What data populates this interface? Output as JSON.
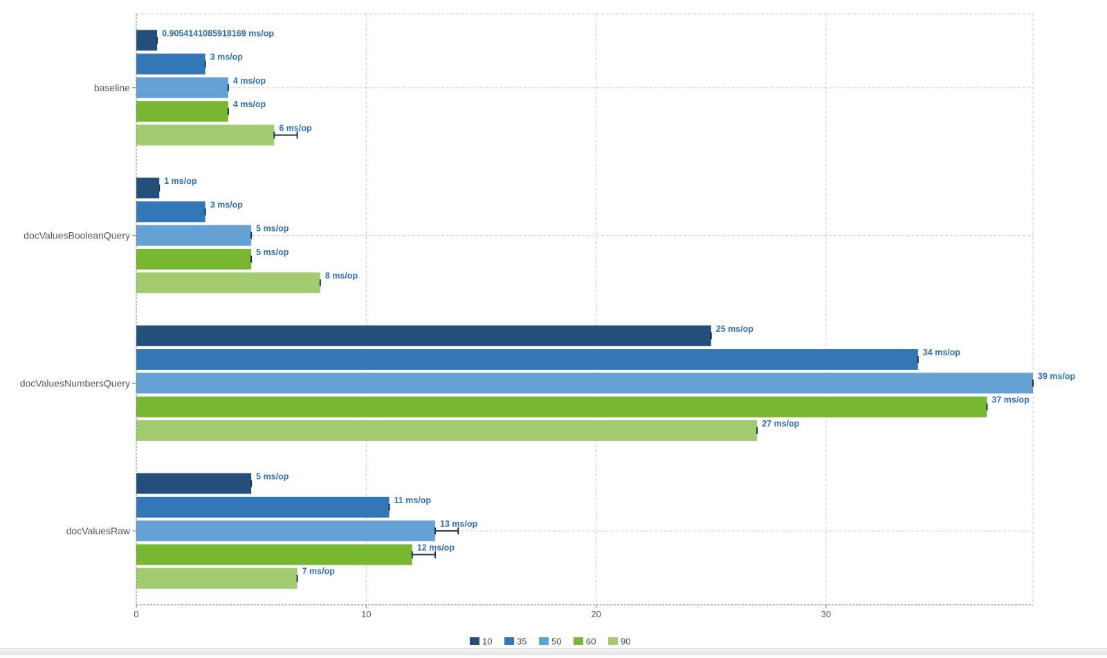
{
  "chart_data": {
    "type": "bar",
    "orientation": "horizontal",
    "categories": [
      "baseline",
      "docValuesBooleanQuery",
      "docValuesNumbersQuery",
      "docValuesRaw"
    ],
    "series": [
      {
        "name": "10",
        "color": "#234f7a",
        "values": [
          0.9054141085918169,
          1,
          25,
          5
        ],
        "errors": [
          0,
          0,
          0,
          0
        ],
        "labels": [
          "0.9054141085918169 ms/op",
          "1 ms/op",
          "25 ms/op",
          "5 ms/op"
        ]
      },
      {
        "name": "35",
        "color": "#3477b7",
        "values": [
          3,
          3,
          34,
          11
        ],
        "errors": [
          0,
          0,
          0,
          0
        ],
        "labels": [
          "3 ms/op",
          "3 ms/op",
          "34 ms/op",
          "11 ms/op"
        ]
      },
      {
        "name": "50",
        "color": "#65a1d5",
        "values": [
          4,
          5,
          39,
          13
        ],
        "errors": [
          0,
          0,
          0,
          1
        ],
        "labels": [
          "4 ms/op",
          "5 ms/op",
          "39 ms/op",
          "13 ms/op"
        ]
      },
      {
        "name": "60",
        "color": "#79b733",
        "values": [
          4,
          5,
          37,
          12
        ],
        "errors": [
          0,
          0,
          0,
          1
        ],
        "labels": [
          "4 ms/op",
          "5 ms/op",
          "37 ms/op",
          "12 ms/op"
        ]
      },
      {
        "name": "90",
        "color": "#a3cb6f",
        "values": [
          6,
          8,
          27,
          7
        ],
        "errors": [
          1,
          0,
          0,
          0
        ],
        "labels": [
          "6 ms/op",
          "8 ms/op",
          "27 ms/op",
          "7 ms/op"
        ]
      }
    ],
    "xlim": [
      0,
      39
    ],
    "xticks": [
      0,
      10,
      20,
      30
    ],
    "grid": true,
    "legend_position": "bottom",
    "title": "",
    "xlabel": "",
    "ylabel": ""
  }
}
